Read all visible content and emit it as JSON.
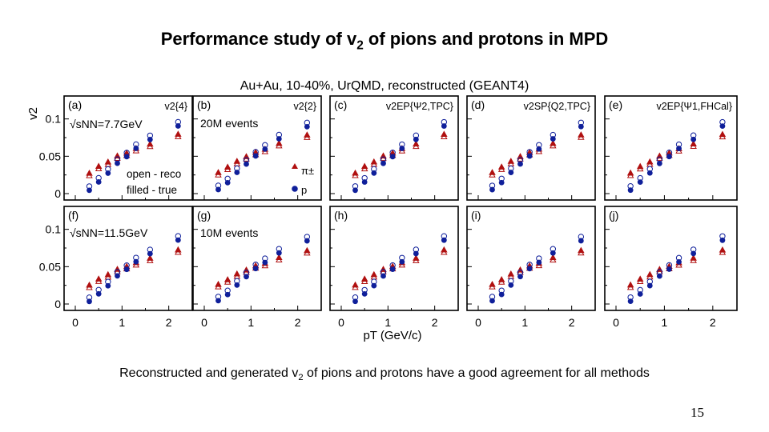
{
  "slide": {
    "title_pre": "Performance study of v",
    "title_sub": "2",
    "title_post": " of pions and protons in MPD",
    "caption_pre": "Reconstructed and generated v",
    "caption_sub": "2",
    "caption_post": " of pions and protons have a good agreement for all methods",
    "page_number": "15"
  },
  "colors": {
    "pion": "#b01010",
    "proton": "#0f1f9a",
    "frame": "#000000",
    "background": "#ffffff"
  },
  "chart_data": {
    "type": "scatter",
    "title": "Au+Au, 10-40%, UrQMD, reconstructed (GEANT4)",
    "ylabel": "v2",
    "xlabel": "pT (GeV/c)",
    "xlim": [
      0,
      2.4
    ],
    "ylim": [
      0,
      0.12
    ],
    "xticks": [
      "0",
      "1",
      "2"
    ],
    "yticks": [
      "0",
      "0.05",
      "0.1"
    ],
    "legend": {
      "open": "open - reco",
      "filled": "filled - true",
      "pion": "π±",
      "proton": "p"
    },
    "energy_labels": [
      "√sNN=7.7GeV",
      "√sNN=11.5GeV"
    ],
    "event_labels": [
      "20M events",
      "10M events"
    ],
    "panels": [
      {
        "label": "(a)",
        "method": "v2{4}",
        "row": 0,
        "col": 0
      },
      {
        "label": "(b)",
        "method": "v2{2}",
        "row": 0,
        "col": 1
      },
      {
        "label": "(c)",
        "method": "v2EP{Ψ2,TPC}",
        "row": 0,
        "col": 2
      },
      {
        "label": "(d)",
        "method": "v2SP{Q2,TPC}",
        "row": 0,
        "col": 3
      },
      {
        "label": "(e)",
        "method": "v2EP{Ψ1,FHCal}",
        "row": 0,
        "col": 4
      },
      {
        "label": "(f)",
        "method": "",
        "row": 1,
        "col": 0
      },
      {
        "label": "(g)",
        "method": "",
        "row": 1,
        "col": 1
      },
      {
        "label": "(h)",
        "method": "",
        "row": 1,
        "col": 2
      },
      {
        "label": "(i)",
        "method": "",
        "row": 1,
        "col": 3
      },
      {
        "label": "(j)",
        "method": "",
        "row": 1,
        "col": 4
      }
    ],
    "x": [
      0.3,
      0.5,
      0.7,
      0.9,
      1.1,
      1.3,
      1.6,
      2.2
    ],
    "series": [
      {
        "name": "π±",
        "row": 0,
        "marker": "triangle",
        "values": [
          0.028,
          0.036,
          0.043,
          0.05,
          0.055,
          0.06,
          0.067,
          0.079
        ]
      },
      {
        "name": "p",
        "row": 0,
        "marker": "circle",
        "values": [
          0.005,
          0.015,
          0.028,
          0.04,
          0.05,
          0.06,
          0.073,
          0.09
        ]
      },
      {
        "name": "π±",
        "row": 1,
        "marker": "triangle",
        "values": [
          0.026,
          0.033,
          0.04,
          0.046,
          0.051,
          0.055,
          0.062,
          0.072
        ]
      },
      {
        "name": "p",
        "row": 1,
        "marker": "circle",
        "values": [
          0.004,
          0.013,
          0.025,
          0.037,
          0.047,
          0.056,
          0.068,
          0.085
        ]
      }
    ]
  }
}
